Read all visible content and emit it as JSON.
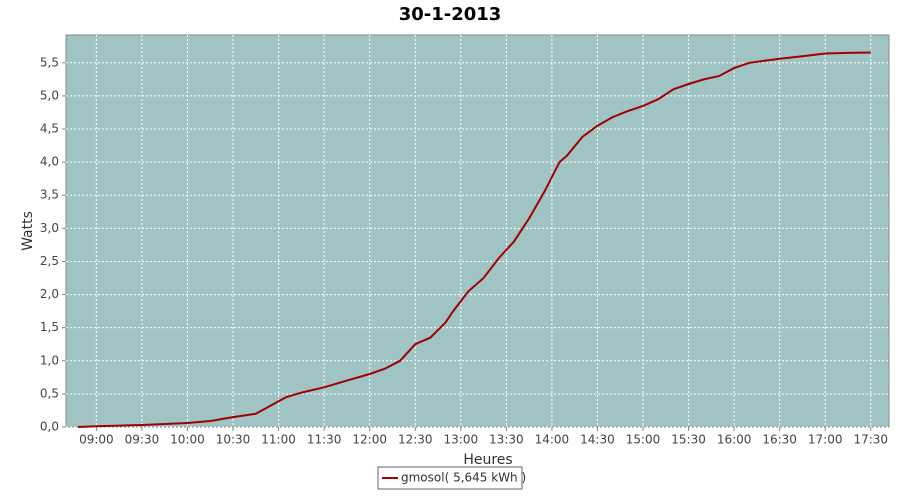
{
  "chart_data": {
    "type": "line",
    "title": "30-1-2013",
    "x_label": "Heures",
    "y_label": "Watts",
    "x": [
      "08:48",
      "09:00",
      "09:30",
      "10:00",
      "10:15",
      "10:30",
      "10:45",
      "11:00",
      "11:05",
      "11:15",
      "11:30",
      "11:45",
      "12:00",
      "12:10",
      "12:20",
      "12:30",
      "12:40",
      "12:50",
      "12:55",
      "13:05",
      "13:15",
      "13:25",
      "13:35",
      "13:45",
      "13:55",
      "14:05",
      "14:10",
      "14:20",
      "14:30",
      "14:40",
      "14:50",
      "15:00",
      "15:10",
      "15:20",
      "15:30",
      "15:40",
      "15:50",
      "16:00",
      "16:10",
      "16:20",
      "16:30",
      "16:45",
      "17:00",
      "17:15",
      "17:30"
    ],
    "series": [
      {
        "name": "gmosol( 5,645 kWh )",
        "color": "#a00000",
        "values": [
          0.0,
          0.01,
          0.03,
          0.06,
          0.09,
          0.15,
          0.2,
          0.39,
          0.45,
          0.52,
          0.6,
          0.7,
          0.8,
          0.88,
          1.0,
          1.25,
          1.35,
          1.58,
          1.75,
          2.05,
          2.25,
          2.55,
          2.8,
          3.15,
          3.55,
          4.0,
          4.1,
          4.38,
          4.55,
          4.68,
          4.77,
          4.85,
          4.95,
          5.1,
          5.18,
          5.25,
          5.3,
          5.42,
          5.5,
          5.53,
          5.56,
          5.6,
          5.64,
          5.65,
          5.655
        ]
      }
    ],
    "xlim": [
      "08:40",
      "17:42"
    ],
    "xticks": [
      "09:00",
      "09:30",
      "10:00",
      "10:30",
      "11:00",
      "11:30",
      "12:00",
      "12:30",
      "13:00",
      "13:30",
      "14:00",
      "14:30",
      "15:00",
      "15:30",
      "16:00",
      "16:30",
      "17:00",
      "17:30"
    ],
    "ylim": [
      0,
      5.92
    ],
    "yticks": [
      {
        "value": 0,
        "label": "0,0"
      },
      {
        "value": 0.5,
        "label": "0,5"
      },
      {
        "value": 1,
        "label": "1,0"
      },
      {
        "value": 1.5,
        "label": "1,5"
      },
      {
        "value": 2,
        "label": "2,0"
      },
      {
        "value": 2.5,
        "label": "2,5"
      },
      {
        "value": 3,
        "label": "3,0"
      },
      {
        "value": 3.5,
        "label": "3,5"
      },
      {
        "value": 4,
        "label": "4,0"
      },
      {
        "value": 4.5,
        "label": "4,5"
      },
      {
        "value": 5,
        "label": "5,0"
      },
      {
        "value": 5.5,
        "label": "5,5"
      }
    ],
    "grid": true,
    "plot_background": "#a0c4c4",
    "legend": "bottom"
  }
}
